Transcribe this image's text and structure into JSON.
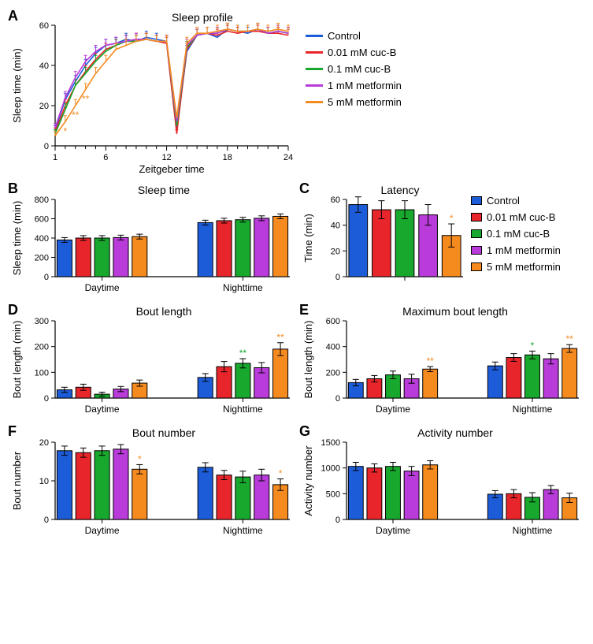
{
  "colors": {
    "control": "#1d5cd8",
    "cucB_0_01": "#e8252a",
    "cucB_0_1": "#17a82d",
    "met_1": "#b93bd9",
    "met_5": "#f58a1f",
    "axis": "#000000",
    "bg": "#ffffff"
  },
  "series_order": [
    "control",
    "cucB_0_01",
    "cucB_0_1",
    "met_1",
    "met_5"
  ],
  "legend_labels": {
    "control": "Control",
    "cucB_0_01": "0.01 mM cuc-B",
    "cucB_0_1": "0.1 mM cuc-B",
    "met_1": "1 mM metformin",
    "met_5": "5 mM metformin"
  },
  "A": {
    "label": "A",
    "title": "Sleep profile",
    "ylabel": "Sleep time (min)",
    "xlabel": "Zeitgeber time",
    "xlim": [
      1,
      24
    ],
    "ylim": [
      0,
      60
    ],
    "xticks_major": [
      1,
      6,
      12,
      18,
      24
    ],
    "xticks_minor": [
      2,
      3,
      4,
      5,
      7,
      8,
      9,
      10,
      11,
      13,
      14,
      15,
      16,
      17,
      19,
      20,
      21,
      22,
      23
    ],
    "yticks": [
      0,
      20,
      40,
      60
    ],
    "x": [
      1,
      2,
      3,
      4,
      5,
      6,
      7,
      8,
      9,
      10,
      11,
      12,
      13,
      14,
      15,
      16,
      17,
      18,
      19,
      20,
      21,
      22,
      23,
      24
    ],
    "y": {
      "control": [
        8,
        23,
        32,
        40,
        46,
        50,
        51,
        53,
        52,
        54,
        53,
        52,
        8,
        47,
        55,
        56,
        54,
        58,
        57,
        56,
        58,
        56,
        57,
        56
      ],
      "cucB_0_01": [
        7,
        20,
        30,
        37,
        43,
        48,
        50,
        52,
        53,
        53,
        52,
        51,
        6,
        48,
        55,
        56,
        55,
        57,
        56,
        57,
        57,
        56,
        56,
        55
      ],
      "cucB_0_1": [
        6,
        18,
        30,
        36,
        42,
        47,
        50,
        52,
        52,
        53,
        52,
        52,
        10,
        49,
        55,
        56,
        56,
        58,
        57,
        57,
        58,
        56,
        57,
        56
      ],
      "met_1": [
        9,
        24,
        34,
        42,
        47,
        50,
        51,
        52,
        53,
        53,
        52,
        52,
        12,
        50,
        55,
        56,
        56,
        58,
        57,
        57,
        58,
        56,
        57,
        56
      ],
      "met_5": [
        5,
        12,
        20,
        28,
        36,
        42,
        48,
        50,
        52,
        53,
        52,
        52,
        14,
        51,
        56,
        56,
        57,
        58,
        57,
        57,
        58,
        57,
        58,
        57
      ]
    },
    "err": {
      "control": [
        2,
        3,
        3,
        3,
        3,
        3,
        3,
        3,
        3,
        3,
        3,
        3,
        2,
        3,
        3,
        3,
        3,
        3,
        3,
        3,
        3,
        3,
        3,
        3
      ],
      "cucB_0_01": [
        2,
        3,
        3,
        3,
        3,
        3,
        3,
        3,
        3,
        3,
        3,
        3,
        2,
        3,
        3,
        3,
        3,
        3,
        3,
        3,
        3,
        3,
        3,
        3
      ],
      "cucB_0_1": [
        2,
        3,
        3,
        3,
        3,
        3,
        3,
        3,
        3,
        3,
        3,
        3,
        2,
        3,
        3,
        3,
        3,
        3,
        3,
        3,
        3,
        3,
        3,
        3
      ],
      "met_1": [
        2,
        3,
        3,
        3,
        3,
        3,
        3,
        3,
        3,
        3,
        3,
        3,
        2,
        3,
        3,
        3,
        3,
        3,
        3,
        3,
        3,
        3,
        3,
        3
      ],
      "met_5": [
        2,
        3,
        3,
        3,
        3,
        3,
        3,
        3,
        3,
        3,
        3,
        3,
        2,
        3,
        3,
        3,
        3,
        3,
        3,
        3,
        3,
        3,
        3,
        3
      ]
    },
    "sig": [
      {
        "x": 2,
        "text": "*",
        "color": "met_5"
      },
      {
        "x": 3,
        "text": "**",
        "color": "met_5"
      },
      {
        "x": 4,
        "text": "**",
        "color": "met_5"
      }
    ],
    "line_width": 1.6,
    "fontsize_axis": 13,
    "fontsize_title": 14
  },
  "bar_common": {
    "groups": [
      "Daytime",
      "Nighttime"
    ],
    "bar_width": 0.8,
    "err_cap": 4,
    "fontsize_axis": 13,
    "fontsize_title": 14,
    "stroke_width": 1
  },
  "B": {
    "label": "B",
    "title": "Sleep time",
    "ylabel": "Sleep time (min)",
    "ylim": [
      0,
      800
    ],
    "yticks": [
      0,
      200,
      400,
      600,
      800
    ],
    "values": {
      "Daytime": [
        380,
        400,
        400,
        405,
        415
      ],
      "Nighttime": [
        560,
        580,
        590,
        605,
        625
      ]
    },
    "err": {
      "Daytime": [
        25,
        25,
        25,
        25,
        25
      ],
      "Nighttime": [
        25,
        25,
        25,
        25,
        25
      ]
    },
    "sig": []
  },
  "C": {
    "label": "C",
    "title": "Latency",
    "ylabel": "Time (min)",
    "ylim": [
      0,
      60
    ],
    "yticks": [
      0,
      20,
      40,
      60
    ],
    "single_group": true,
    "values": {
      "_": [
        56,
        52,
        52,
        48,
        32
      ]
    },
    "err": {
      "_": [
        6,
        7,
        7,
        8,
        9
      ]
    },
    "sig": [
      {
        "group": "_",
        "i": 4,
        "text": "*",
        "color": "met_5"
      }
    ]
  },
  "D": {
    "label": "D",
    "title": "Bout length",
    "ylabel": "Bout length (min)",
    "ylim": [
      0,
      300
    ],
    "yticks": [
      0,
      100,
      200,
      300
    ],
    "values": {
      "Daytime": [
        32,
        42,
        15,
        35,
        58
      ],
      "Nighttime": [
        80,
        122,
        135,
        118,
        190
      ]
    },
    "err": {
      "Daytime": [
        10,
        12,
        8,
        10,
        12
      ],
      "Nighttime": [
        15,
        20,
        18,
        20,
        25
      ]
    },
    "sig": [
      {
        "group": "Nighttime",
        "i": 2,
        "text": "**",
        "color": "cucB_0_1"
      },
      {
        "group": "Nighttime",
        "i": 4,
        "text": "**",
        "color": "met_5"
      }
    ]
  },
  "E": {
    "label": "E",
    "title": "Maximum bout length",
    "ylabel": "Bout length (min)",
    "ylim": [
      0,
      600
    ],
    "yticks": [
      0,
      200,
      400,
      600
    ],
    "values": {
      "Daytime": [
        120,
        150,
        180,
        150,
        225
      ],
      "Nighttime": [
        250,
        315,
        335,
        305,
        385
      ]
    },
    "err": {
      "Daytime": [
        25,
        25,
        30,
        35,
        20
      ],
      "Nighttime": [
        30,
        30,
        30,
        40,
        30
      ]
    },
    "sig": [
      {
        "group": "Daytime",
        "i": 4,
        "text": "**",
        "color": "met_5"
      },
      {
        "group": "Nighttime",
        "i": 2,
        "text": "*",
        "color": "cucB_0_1"
      },
      {
        "group": "Nighttime",
        "i": 4,
        "text": "**",
        "color": "met_5"
      }
    ]
  },
  "F": {
    "label": "F",
    "title": "Bout number",
    "ylabel": "Bout number",
    "ylim": [
      0,
      20
    ],
    "yticks": [
      0,
      10,
      20
    ],
    "values": {
      "Daytime": [
        17.8,
        17.3,
        17.8,
        18.2,
        13.0
      ],
      "Nighttime": [
        13.5,
        11.5,
        11.0,
        11.5,
        9.0
      ]
    },
    "err": {
      "Daytime": [
        1.2,
        1.2,
        1.2,
        1.2,
        1.2
      ],
      "Nighttime": [
        1.2,
        1.2,
        1.5,
        1.5,
        1.5
      ]
    },
    "sig": [
      {
        "group": "Daytime",
        "i": 4,
        "text": "*",
        "color": "met_5"
      },
      {
        "group": "Nighttime",
        "i": 4,
        "text": "*",
        "color": "met_5"
      }
    ]
  },
  "G": {
    "label": "G",
    "title": "Activity number",
    "ylabel": "Activity number",
    "ylim": [
      0,
      1500
    ],
    "yticks": [
      0,
      500,
      1000,
      1500
    ],
    "values": {
      "Daytime": [
        1030,
        1000,
        1030,
        940,
        1060
      ],
      "Nighttime": [
        490,
        500,
        430,
        580,
        420
      ]
    },
    "err": {
      "Daytime": [
        80,
        80,
        80,
        90,
        80
      ],
      "Nighttime": [
        70,
        80,
        90,
        80,
        90
      ]
    },
    "sig": []
  }
}
